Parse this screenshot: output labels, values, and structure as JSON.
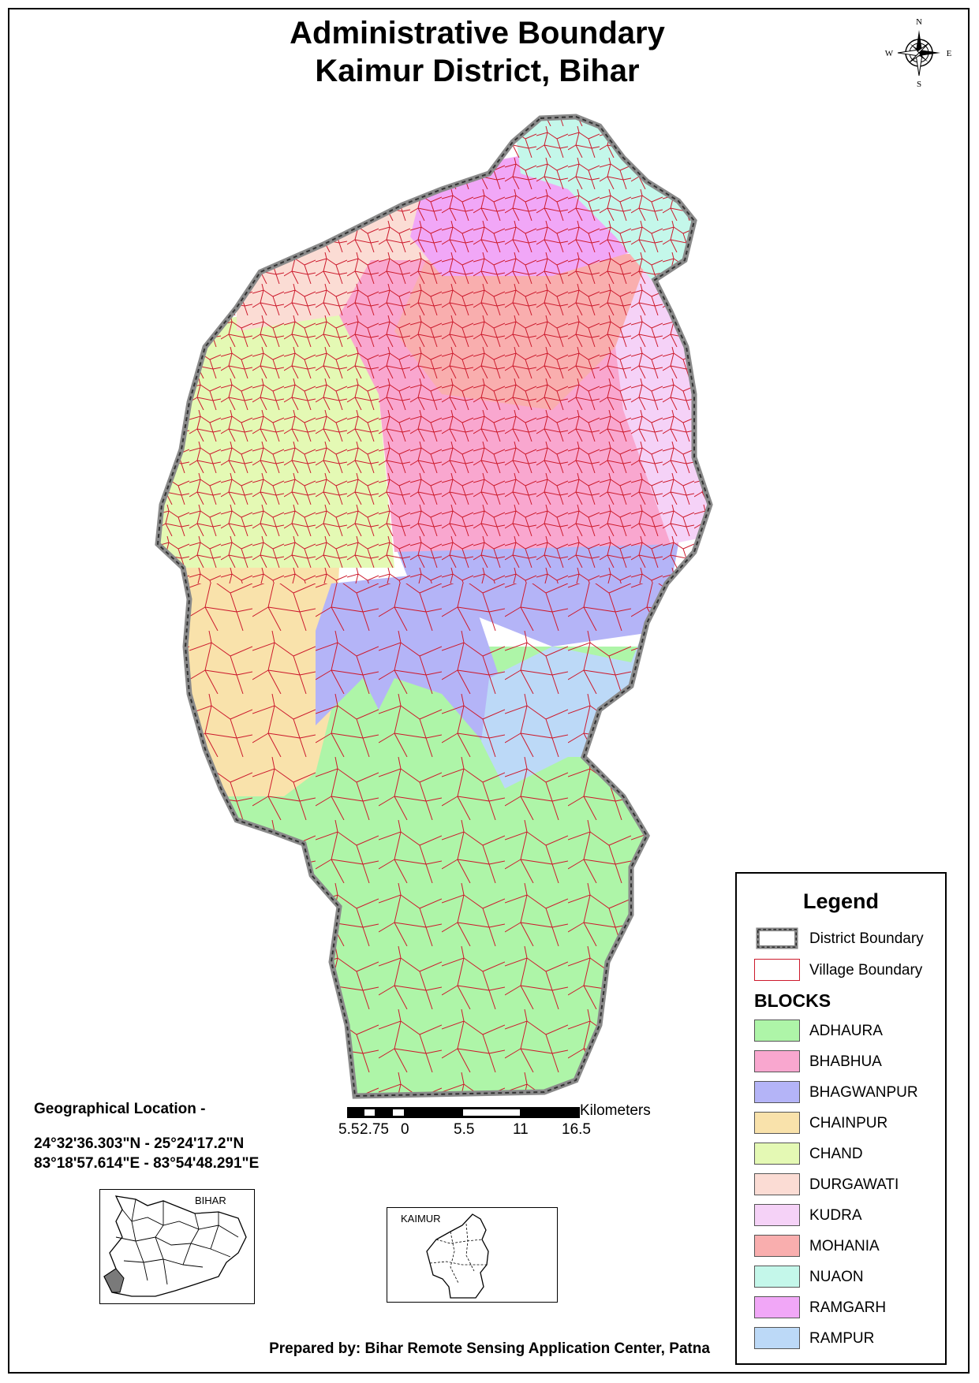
{
  "title": {
    "line1": "Administrative Boundary",
    "line2": "Kaimur District, Bihar"
  },
  "compass": {
    "n": "N",
    "s": "S",
    "e": "E",
    "w": "W"
  },
  "legend": {
    "title": "Legend",
    "district_boundary": "District Boundary",
    "village_boundary": "Village Boundary",
    "blocks_title": "BLOCKS",
    "blocks": [
      {
        "name": "ADHAURA",
        "color": "#aef5a8"
      },
      {
        "name": "BHABHUA",
        "color": "#f9a7cf"
      },
      {
        "name": "BHAGWANPUR",
        "color": "#b4b4f7"
      },
      {
        "name": "CHAINPUR",
        "color": "#f9e2ab"
      },
      {
        "name": "CHAND",
        "color": "#e4f9b4"
      },
      {
        "name": "DURGAWATI",
        "color": "#fbdcd4"
      },
      {
        "name": "KUDRA",
        "color": "#f5d2f7"
      },
      {
        "name": "MOHANIA",
        "color": "#f9aeae"
      },
      {
        "name": "NUAON",
        "color": "#c4f7ea"
      },
      {
        "name": "RAMGARH",
        "color": "#f1a7f7"
      },
      {
        "name": "RAMPUR",
        "color": "#bcd9f7"
      }
    ]
  },
  "geo": {
    "label": "Geographical Location -",
    "lat": "24°32'36.303\"N - 25°24'17.2\"N",
    "lon": "83°18'57.614\"E  - 83°54'48.291\"E"
  },
  "scale": {
    "unit": "Kilometers",
    "ticks": [
      "5.5",
      "2.75",
      "0",
      "5.5",
      "11",
      "16.5"
    ]
  },
  "insets": {
    "bihar": "BIHAR",
    "kaimur": "KAIMUR"
  },
  "footer": "Prepared by: Bihar Remote Sensing Application Center, Patna"
}
